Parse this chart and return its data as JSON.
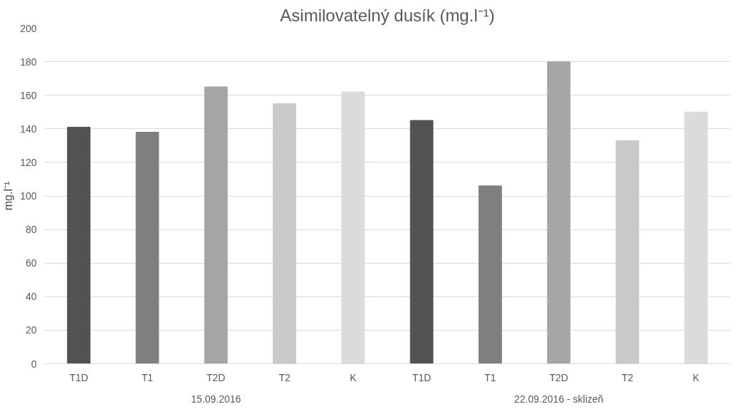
{
  "chart_data": {
    "type": "bar",
    "title": "Asimilovatelný dusík (mg.l⁻¹)",
    "ylabel": "mg.l⁻¹",
    "categories": [
      "T1D",
      "T1",
      "T2D",
      "T2",
      "K",
      "T1D",
      "T1",
      "T2D",
      "T2",
      "K"
    ],
    "values": [
      141,
      138,
      165,
      155,
      162,
      145,
      106,
      180,
      133,
      150
    ],
    "colors": [
      "#525252",
      "#7f7f7f",
      "#a5a5a5",
      "#c9c9c9",
      "#dbdbdb",
      "#525252",
      "#7f7f7f",
      "#a5a5a5",
      "#c9c9c9",
      "#dbdbdb"
    ],
    "ylim": [
      0,
      200
    ],
    "yticks": [
      0,
      20,
      40,
      60,
      80,
      100,
      120,
      140,
      160,
      180,
      200
    ],
    "grid": "y",
    "annotations": [
      "15.09.2016",
      "22.09.2016 - sklizeň"
    ]
  }
}
